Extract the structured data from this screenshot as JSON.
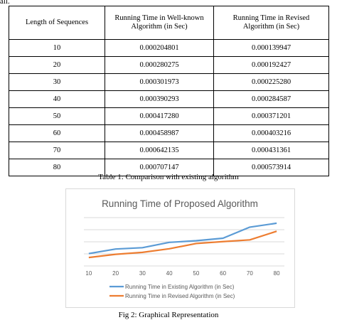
{
  "fragment_text": "all.",
  "table": {
    "headers": [
      "Length of Sequences",
      "Running Time in Well-known Algorithm (in Sec)",
      "Running Time in Revised Algorithm (in Sec)"
    ],
    "rows": [
      [
        "10",
        "0.000204801",
        "0.000139947"
      ],
      [
        "20",
        "0.000280275",
        "0.000192427"
      ],
      [
        "30",
        "0.000301973",
        "0.000225280"
      ],
      [
        "40",
        "0.000390293",
        "0.000284587"
      ],
      [
        "50",
        "0.000417280",
        "0.000371201"
      ],
      [
        "60",
        "0.000458987",
        "0.000403216"
      ],
      [
        "70",
        "0.000642135",
        "0.000431361"
      ],
      [
        "80",
        "0.000707147",
        "0.000573914"
      ]
    ],
    "caption": "Table 1: Comparison with existing algorithm"
  },
  "figure_caption": "Fig 2: Graphical Representation",
  "colors": {
    "series1": "#5b9bd5",
    "series2": "#ed7d31",
    "grid": "#d9d9d9",
    "text": "#595959"
  },
  "chart_data": {
    "type": "line",
    "title": "Running Time of Proposed Algorithm",
    "x": [
      10,
      20,
      30,
      40,
      50,
      60,
      70,
      80
    ],
    "xlabel": "",
    "ylabel": "",
    "ylim": [
      0,
      0.0008
    ],
    "yticks": [
      "0",
      "0.0002",
      "0.0004",
      "0.0006",
      "0.0008"
    ],
    "grid": true,
    "legend": "bottom",
    "series": [
      {
        "name": "Running Time in Existing Algorithm (in Sec)",
        "values": [
          0.000204801,
          0.000280275,
          0.000301973,
          0.000390293,
          0.00041728,
          0.000458987,
          0.000642135,
          0.000707147
        ]
      },
      {
        "name": "Running Time in Revised Algorithm (in Sec)",
        "values": [
          0.000139947,
          0.000192427,
          0.00022528,
          0.000284587,
          0.000371201,
          0.000403216,
          0.000431361,
          0.000573914
        ]
      }
    ]
  }
}
